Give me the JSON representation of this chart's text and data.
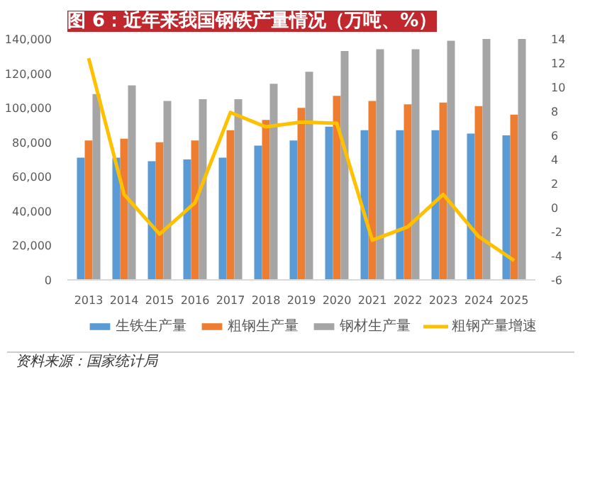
{
  "chart_data": {
    "type": "bar",
    "title": "图 6：近年来我国钢铁产量情况（万吨、%）",
    "categories": [
      "2013",
      "2014",
      "2015",
      "2016",
      "2017",
      "2018",
      "2019",
      "2020",
      "2021",
      "2022",
      "2023",
      "2024",
      "2025"
    ],
    "series": [
      {
        "name": "生铁生产量",
        "color": "#5b9bd5",
        "values": [
          71000,
          71000,
          69000,
          70000,
          71000,
          78000,
          81000,
          89000,
          87000,
          87000,
          87000,
          85000,
          84000
        ]
      },
      {
        "name": "粗钢生产量",
        "color": "#ed7d31",
        "values": [
          81000,
          82000,
          80000,
          81000,
          87000,
          93000,
          100000,
          107000,
          104000,
          102000,
          103000,
          101000,
          96000
        ]
      },
      {
        "name": "钢材生产量",
        "color": "#a5a5a5",
        "values": [
          108000,
          113000,
          104000,
          105000,
          105000,
          114000,
          121000,
          133000,
          134000,
          134000,
          139000,
          140000,
          140000
        ]
      },
      {
        "name": "粗钢产量增速",
        "color": "#ffc000",
        "type": "line",
        "axis": "y2",
        "values": [
          12.4,
          1.1,
          -2.2,
          0.4,
          7.9,
          6.7,
          7.1,
          7.0,
          -2.7,
          -1.6,
          1.1,
          -2.4,
          -4.4
        ]
      }
    ],
    "ylim": [
      0,
      140000
    ],
    "yticks": [
      {
        "value": 0,
        "label": "0"
      },
      {
        "value": 20000,
        "label": "20,000"
      },
      {
        "value": 40000,
        "label": "40,000"
      },
      {
        "value": 60000,
        "label": "60,000"
      },
      {
        "value": 80000,
        "label": "80,000"
      },
      {
        "value": 100000,
        "label": "100,000"
      },
      {
        "value": 120000,
        "label": "120,000"
      },
      {
        "value": 140000,
        "label": "140,000"
      }
    ],
    "y2lim": [
      -6,
      14
    ],
    "y2ticks": [
      -6,
      -4,
      -2,
      0,
      2,
      4,
      6,
      8,
      10,
      12,
      14
    ],
    "grid": false,
    "legend": "bottom",
    "annotations": [
      "资料来源：国家统计局"
    ]
  }
}
